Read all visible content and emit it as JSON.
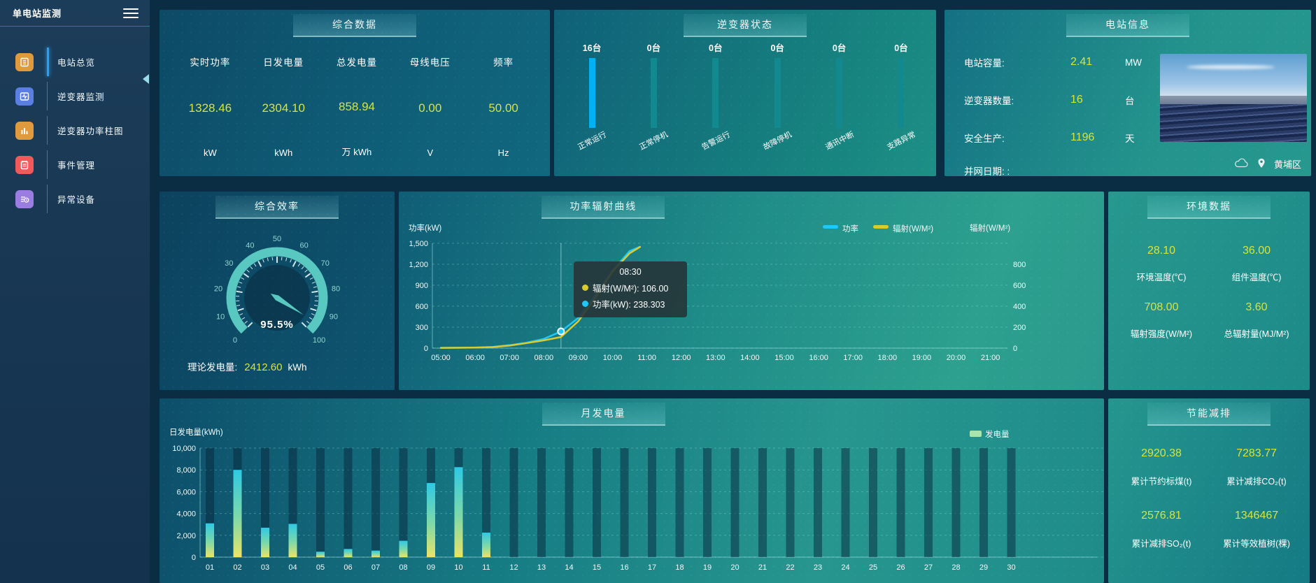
{
  "colors": {
    "value_yellow": "#d7e43c",
    "bar_blue": "#00b2f4",
    "bar_teal": "#12888f",
    "line_power": "#1ec8f8",
    "line_radiation": "#d9cb2f",
    "gauge_arc": "#58c8c0",
    "active_menu": "#2ba0f2",
    "monthly_legend_swatch": "#a8e6ae"
  },
  "sidebar": {
    "title": "单电站监测",
    "items": [
      {
        "label": "电站总览",
        "active": true
      },
      {
        "label": "逆变器监测",
        "active": false
      },
      {
        "label": "逆变器功率柱图",
        "active": false
      },
      {
        "label": "事件管理",
        "active": false
      },
      {
        "label": "异常设备",
        "active": false
      }
    ]
  },
  "overview": {
    "title": "综合数据",
    "metrics": [
      {
        "label": "实时功率",
        "value": "1328.46",
        "unit": "kW"
      },
      {
        "label": "日发电量",
        "value": "2304.10",
        "unit": "kWh"
      },
      {
        "label": "总发电量",
        "value": "858.94",
        "unit": "万 kWh"
      },
      {
        "label": "母线电压",
        "value": "0.00",
        "unit": "V"
      },
      {
        "label": "频率",
        "value": "50.00",
        "unit": "Hz"
      }
    ]
  },
  "inverter_status": {
    "title": "逆变器状态",
    "items": [
      {
        "count": "16台",
        "label": "正常运行",
        "highlight": true
      },
      {
        "count": "0台",
        "label": "正常停机",
        "highlight": false
      },
      {
        "count": "0台",
        "label": "告警运行",
        "highlight": false
      },
      {
        "count": "0台",
        "label": "故障停机",
        "highlight": false
      },
      {
        "count": "0台",
        "label": "通讯中断",
        "highlight": false
      },
      {
        "count": "0台",
        "label": "支路异常",
        "highlight": false
      }
    ]
  },
  "station_info": {
    "title": "电站信息",
    "rows": [
      {
        "label": "电站容量:",
        "value": "2.41",
        "unit": "MW"
      },
      {
        "label": "逆变器数量:",
        "value": "16",
        "unit": "台"
      },
      {
        "label": "安全生产:",
        "value": "1196",
        "unit": "天"
      },
      {
        "label": "并网日期: :",
        "value": "",
        "unit": ""
      }
    ],
    "location": "黄埔区"
  },
  "efficiency": {
    "title": "综合效率",
    "gauge_label": "95.5%",
    "theory_label": "理论发电量:",
    "theory_value": "2412.60",
    "theory_unit": "kWh"
  },
  "power_curve": {
    "title": "功率辐射曲线",
    "legend": [
      "功率",
      "辐射(W/M²)"
    ],
    "ylabel_left": "功率(kW)",
    "ylabel_right": "辐射(W/M²)",
    "tooltip": {
      "time": "08:30",
      "rows": [
        {
          "color": "#d9cb2f",
          "text": "辐射(W/M²): 106.00"
        },
        {
          "color": "#1ec8f8",
          "text": "功率(kW): 238.303"
        }
      ]
    }
  },
  "environment": {
    "title": "环境数据",
    "metrics": [
      {
        "value": "28.10",
        "label": "环境温度(℃)"
      },
      {
        "value": "36.00",
        "label": "组件温度(℃)"
      },
      {
        "value": "708.00",
        "label": "辐射强度(W/M²)"
      },
      {
        "value": "3.60",
        "label": "总辐射量(MJ/M²)"
      }
    ]
  },
  "monthly": {
    "title": "月发电量",
    "ylabel": "日发电量(kWh)",
    "legend": "发电量"
  },
  "savings": {
    "title": "节能减排",
    "metrics": [
      {
        "value": "2920.38",
        "label": "累计节约标煤(t)"
      },
      {
        "value": "7283.77",
        "label": "累计减排CO₂(t)"
      },
      {
        "value": "2576.81",
        "label": "累计减排SO₂(t)"
      },
      {
        "value": "1346467",
        "label": "累计等效植树(棵)"
      }
    ]
  },
  "chart_data": [
    {
      "type": "gauge",
      "title": "综合效率",
      "value": 95.5,
      "min": 0,
      "max": 100,
      "tick_labels": [
        0,
        10,
        20,
        30,
        40,
        50,
        60,
        70,
        80,
        90,
        100
      ],
      "center_text": "95.5%"
    },
    {
      "type": "line",
      "title": "功率辐射曲线",
      "x_labels": [
        "05:00",
        "06:00",
        "07:00",
        "08:00",
        "09:00",
        "10:00",
        "11:00",
        "12:00",
        "13:00",
        "14:00",
        "15:00",
        "16:00",
        "17:00",
        "18:00",
        "19:00",
        "20:00",
        "21:00"
      ],
      "ylabel_left": "功率(kW)",
      "ylim_left": [
        0,
        1500
      ],
      "yticks_left": [
        "1,500",
        "1,200",
        "900",
        "600",
        "300",
        "0"
      ],
      "ylabel_right": "辐射(W/M²)",
      "ylim_right": [
        0,
        1000
      ],
      "yticks_right": [
        "800",
        "600",
        "400",
        "200",
        "0"
      ],
      "legend_position": "top-right",
      "grid": true,
      "series": [
        {
          "name": "功率",
          "axis": "left",
          "color": "#1ec8f8",
          "points": [
            [
              5,
              5
            ],
            [
              5.5,
              6
            ],
            [
              6,
              9
            ],
            [
              6.5,
              16
            ],
            [
              7,
              42
            ],
            [
              7.5,
              78
            ],
            [
              8,
              132
            ],
            [
              8.5,
              238.303
            ],
            [
              9,
              430
            ],
            [
              9.5,
              760
            ],
            [
              10,
              1110
            ],
            [
              10.5,
              1390
            ],
            [
              10.8,
              1450
            ]
          ]
        },
        {
          "name": "辐射(W/M²)",
          "axis": "right",
          "color": "#d9cb2f",
          "points": [
            [
              5,
              2
            ],
            [
              5.5,
              3
            ],
            [
              6,
              5
            ],
            [
              6.5,
              10
            ],
            [
              7,
              24
            ],
            [
              7.5,
              48
            ],
            [
              8,
              74
            ],
            [
              8.5,
              106
            ],
            [
              9,
              255
            ],
            [
              9.5,
              480
            ],
            [
              10,
              730
            ],
            [
              10.5,
              905
            ],
            [
              10.8,
              965
            ]
          ]
        }
      ],
      "crosshair_x": 8.5,
      "highlight_point": {
        "x": 8.5,
        "value": 238.303,
        "series": "功率"
      },
      "tooltip": {
        "time": "08:30",
        "radiation": 106.0,
        "power": 238.303
      }
    },
    {
      "type": "bar",
      "title": "月发电量",
      "ylabel": "日发电量(kWh)",
      "legend": "发电量",
      "ylim": [
        0,
        10000
      ],
      "yticks": [
        "10,000",
        "8,000",
        "6,000",
        "4,000",
        "2,000",
        "0"
      ],
      "grid": true,
      "categories": [
        "01",
        "02",
        "03",
        "04",
        "05",
        "06",
        "07",
        "08",
        "09",
        "10",
        "11",
        "12",
        "13",
        "14",
        "15",
        "16",
        "17",
        "18",
        "19",
        "20",
        "21",
        "22",
        "23",
        "24",
        "25",
        "26",
        "27",
        "28",
        "29",
        "30"
      ],
      "values": [
        3100,
        8000,
        2700,
        3050,
        500,
        750,
        600,
        1500,
        6800,
        8250,
        2250,
        0,
        0,
        0,
        0,
        0,
        0,
        0,
        0,
        0,
        0,
        0,
        0,
        0,
        0,
        0,
        0,
        0,
        0,
        0
      ]
    },
    {
      "type": "bar",
      "title": "逆变器状态",
      "categories": [
        "正常运行",
        "正常停机",
        "告警运行",
        "故障停机",
        "通讯中断",
        "支路异常"
      ],
      "values": [
        16,
        0,
        0,
        0,
        0,
        0
      ],
      "unit": "台"
    }
  ]
}
